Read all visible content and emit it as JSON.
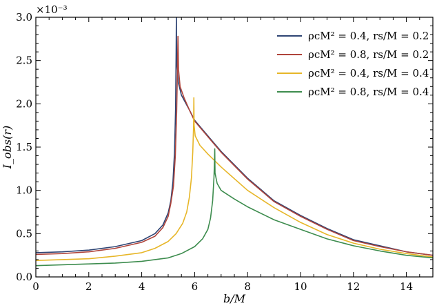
{
  "chart_data": {
    "type": "line",
    "title": "",
    "xlabel": "b/M",
    "ylabel": "I_obs(r)",
    "y_scale_label": "×10⁻³",
    "xlim": [
      0,
      15
    ],
    "ylim": [
      0,
      3.0
    ],
    "xticks": [
      0,
      2,
      4,
      6,
      8,
      10,
      12,
      14
    ],
    "yticks": [
      0.0,
      0.5,
      1.0,
      1.5,
      2.0,
      2.5,
      3.0
    ],
    "xtick_labels": [
      "0",
      "2",
      "4",
      "6",
      "8",
      "10",
      "12",
      "14"
    ],
    "ytick_labels": [
      "0.0",
      "0.5",
      "1.0",
      "1.5",
      "2.0",
      "2.5",
      "3.0"
    ],
    "legend_position": "top-right",
    "series": [
      {
        "name": "ρcM² = 0.4, rs/M = 0.2",
        "color": "#2e4473",
        "points": [
          [
            0,
            0.28
          ],
          [
            1,
            0.29
          ],
          [
            2,
            0.31
          ],
          [
            3,
            0.35
          ],
          [
            4,
            0.42
          ],
          [
            4.5,
            0.5
          ],
          [
            4.8,
            0.6
          ],
          [
            5.0,
            0.74
          ],
          [
            5.1,
            0.88
          ],
          [
            5.18,
            1.1
          ],
          [
            5.24,
            1.45
          ],
          [
            5.28,
            1.95
          ],
          [
            5.3,
            2.6
          ],
          [
            5.31,
            3.05
          ],
          [
            5.32,
            2.5
          ],
          [
            5.38,
            2.25
          ],
          [
            5.5,
            2.1
          ],
          [
            5.8,
            1.93
          ],
          [
            6.0,
            1.81
          ],
          [
            6.5,
            1.63
          ],
          [
            7,
            1.45
          ],
          [
            8,
            1.14
          ],
          [
            9,
            0.88
          ],
          [
            10,
            0.71
          ],
          [
            11,
            0.56
          ],
          [
            12,
            0.43
          ],
          [
            13,
            0.36
          ],
          [
            14,
            0.29
          ],
          [
            15,
            0.25
          ]
        ]
      },
      {
        "name": "ρcM² = 0.8, rs/M = 0.2",
        "color": "#b0453c",
        "points": [
          [
            0,
            0.26
          ],
          [
            1,
            0.27
          ],
          [
            2,
            0.29
          ],
          [
            3,
            0.33
          ],
          [
            4,
            0.4
          ],
          [
            4.5,
            0.47
          ],
          [
            4.8,
            0.57
          ],
          [
            5.0,
            0.7
          ],
          [
            5.1,
            0.85
          ],
          [
            5.2,
            1.05
          ],
          [
            5.27,
            1.4
          ],
          [
            5.32,
            1.9
          ],
          [
            5.35,
            2.4
          ],
          [
            5.37,
            2.78
          ],
          [
            5.39,
            2.4
          ],
          [
            5.45,
            2.2
          ],
          [
            5.6,
            2.07
          ],
          [
            5.8,
            1.93
          ],
          [
            6.0,
            1.8
          ],
          [
            6.5,
            1.62
          ],
          [
            7,
            1.44
          ],
          [
            8,
            1.13
          ],
          [
            9,
            0.87
          ],
          [
            10,
            0.7
          ],
          [
            11,
            0.55
          ],
          [
            12,
            0.42
          ],
          [
            13,
            0.35
          ],
          [
            14,
            0.29
          ],
          [
            15,
            0.25
          ]
        ]
      },
      {
        "name": "ρcM² = 0.4, rs/M = 0.4",
        "color": "#e7b628",
        "points": [
          [
            0,
            0.19
          ],
          [
            1,
            0.2
          ],
          [
            2,
            0.21
          ],
          [
            3,
            0.24
          ],
          [
            4,
            0.28
          ],
          [
            4.5,
            0.33
          ],
          [
            5.0,
            0.41
          ],
          [
            5.3,
            0.5
          ],
          [
            5.55,
            0.62
          ],
          [
            5.7,
            0.75
          ],
          [
            5.8,
            0.92
          ],
          [
            5.88,
            1.15
          ],
          [
            5.93,
            1.45
          ],
          [
            5.96,
            1.75
          ],
          [
            5.97,
            2.07
          ],
          [
            5.98,
            1.75
          ],
          [
            6.02,
            1.63
          ],
          [
            6.2,
            1.52
          ],
          [
            6.5,
            1.42
          ],
          [
            7,
            1.27
          ],
          [
            8,
            1.0
          ],
          [
            9,
            0.8
          ],
          [
            10,
            0.63
          ],
          [
            11,
            0.49
          ],
          [
            12,
            0.39
          ],
          [
            13,
            0.32
          ],
          [
            14,
            0.27
          ],
          [
            15,
            0.23
          ]
        ]
      },
      {
        "name": "ρcM² = 0.8, rs/M = 0.4",
        "color": "#3d8c4e",
        "points": [
          [
            0,
            0.13
          ],
          [
            1,
            0.14
          ],
          [
            2,
            0.15
          ],
          [
            3,
            0.16
          ],
          [
            4,
            0.18
          ],
          [
            5,
            0.22
          ],
          [
            5.5,
            0.27
          ],
          [
            6.0,
            0.35
          ],
          [
            6.3,
            0.44
          ],
          [
            6.5,
            0.55
          ],
          [
            6.6,
            0.68
          ],
          [
            6.68,
            0.88
          ],
          [
            6.73,
            1.15
          ],
          [
            6.75,
            1.35
          ],
          [
            6.76,
            1.48
          ],
          [
            6.77,
            1.2
          ],
          [
            6.85,
            1.08
          ],
          [
            7,
            1.0
          ],
          [
            7.5,
            0.9
          ],
          [
            8,
            0.81
          ],
          [
            9,
            0.66
          ],
          [
            10,
            0.55
          ],
          [
            11,
            0.44
          ],
          [
            12,
            0.36
          ],
          [
            13,
            0.3
          ],
          [
            14,
            0.25
          ],
          [
            15,
            0.22
          ]
        ]
      }
    ]
  }
}
